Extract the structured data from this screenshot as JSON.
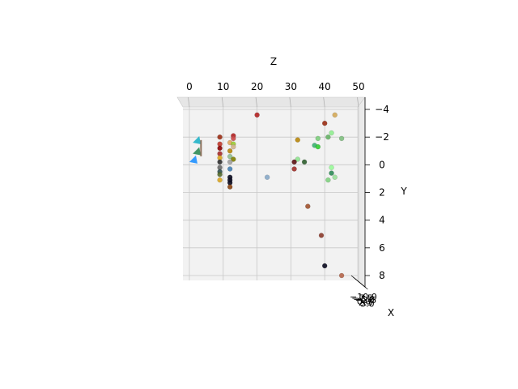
{
  "chart_data": {
    "type": "scatter",
    "projection": "3d",
    "title": "",
    "zlabel": "Z",
    "ylabel": "Y",
    "xlabel": "X",
    "z_ticks": [
      "0",
      "10",
      "20",
      "30",
      "40",
      "50"
    ],
    "y_ticks": [
      "−4",
      "−2",
      "0",
      "2",
      "4",
      "6",
      "8"
    ],
    "x_ticks_overlapping": [
      "−10.0",
      "−7.5",
      "−5.0",
      "−2.5",
      "0.0",
      "2.5",
      "5.0"
    ],
    "zlim": [
      0,
      50
    ],
    "ylim": [
      -4,
      9
    ],
    "grid": true,
    "points": [
      {
        "z": 20,
        "y": -3.6,
        "c": "#b22222"
      },
      {
        "z": 43,
        "y": -3.6,
        "c": "#d4a857"
      },
      {
        "z": 40,
        "y": -3.0,
        "c": "#9b2d14"
      },
      {
        "z": 9,
        "y": -2.0,
        "c": "#9b2d14"
      },
      {
        "z": 13,
        "y": -2.1,
        "c": "#b22222"
      },
      {
        "z": 13,
        "y": -1.9,
        "c": "#cc4a4a"
      },
      {
        "z": 12,
        "y": -1.6,
        "c": "#e0a860"
      },
      {
        "z": 9,
        "y": -1.5,
        "c": "#c0392b"
      },
      {
        "z": 9,
        "y": -1.2,
        "c": "#8b0000"
      },
      {
        "z": 13,
        "y": -1.5,
        "c": "#9acd32"
      },
      {
        "z": 13,
        "y": -1.3,
        "c": "#d2b48c"
      },
      {
        "z": 12,
        "y": -1.0,
        "c": "#b8860b"
      },
      {
        "z": 9,
        "y": -0.8,
        "c": "#a52a2a"
      },
      {
        "z": 12,
        "y": -0.6,
        "c": "#8fbc8f"
      },
      {
        "z": 9,
        "y": -0.5,
        "c": "#daa520"
      },
      {
        "z": 13,
        "y": -0.4,
        "c": "#808000"
      },
      {
        "z": 9,
        "y": -0.2,
        "c": "#2f2f2f"
      },
      {
        "z": 12,
        "y": -0.2,
        "c": "#a0a0a0"
      },
      {
        "z": 9,
        "y": 0.2,
        "c": "#696969"
      },
      {
        "z": 12,
        "y": 0.3,
        "c": "#4682b4"
      },
      {
        "z": 9,
        "y": 0.5,
        "c": "#2f4f4f"
      },
      {
        "z": 9,
        "y": 0.7,
        "c": "#556b2f"
      },
      {
        "z": 9,
        "y": 1.1,
        "c": "#daa520"
      },
      {
        "z": 12,
        "y": 0.9,
        "c": "#0b0b20"
      },
      {
        "z": 12,
        "y": 1.1,
        "c": "#0b0b20"
      },
      {
        "z": 12,
        "y": 1.3,
        "c": "#0b0b20"
      },
      {
        "z": 12,
        "y": 1.6,
        "c": "#8b4513"
      },
      {
        "z": 32,
        "y": -1.8,
        "c": "#b8860b"
      },
      {
        "z": 38,
        "y": -1.9,
        "c": "#7ccd7c"
      },
      {
        "z": 41,
        "y": -2.0,
        "c": "#66b266"
      },
      {
        "z": 42,
        "y": -2.3,
        "c": "#90ee90"
      },
      {
        "z": 45,
        "y": -1.9,
        "c": "#7fbf7f"
      },
      {
        "z": 37,
        "y": -1.4,
        "c": "#3cb371"
      },
      {
        "z": 38,
        "y": -1.3,
        "c": "#32cd32"
      },
      {
        "z": 32,
        "y": -0.4,
        "c": "#8fe28f"
      },
      {
        "z": 31,
        "y": -0.2,
        "c": "#5a1010"
      },
      {
        "z": 34,
        "y": -0.2,
        "c": "#2e5e2e"
      },
      {
        "z": 31,
        "y": 0.3,
        "c": "#a0302a"
      },
      {
        "z": 42,
        "y": 0.2,
        "c": "#98fb98"
      },
      {
        "z": 42,
        "y": 0.6,
        "c": "#2e8b57"
      },
      {
        "z": 43,
        "y": 0.9,
        "c": "#9be09b"
      },
      {
        "z": 41,
        "y": 1.1,
        "c": "#7fd17f"
      },
      {
        "z": 23,
        "y": 0.9,
        "c": "#87a8c8"
      },
      {
        "z": 35,
        "y": 3.0,
        "c": "#a0522d"
      },
      {
        "z": 39,
        "y": 5.1,
        "c": "#8b3a2a"
      },
      {
        "z": 40,
        "y": 7.3,
        "c": "#0b0b20"
      },
      {
        "z": 45,
        "y": 8.0,
        "c": "#b5654a"
      }
    ],
    "markers_left": [
      {
        "kind": "arrow",
        "z": 1,
        "y": -1.6,
        "c": "#20b2c8"
      },
      {
        "kind": "arrow",
        "z": 1,
        "y": -0.8,
        "c": "#2e8b57"
      },
      {
        "kind": "arrow",
        "z": 0,
        "y": -0.2,
        "c": "#1e90ff"
      },
      {
        "kind": "bar",
        "z": 2,
        "y": -1.2,
        "c": "#8b6f5a"
      }
    ]
  }
}
